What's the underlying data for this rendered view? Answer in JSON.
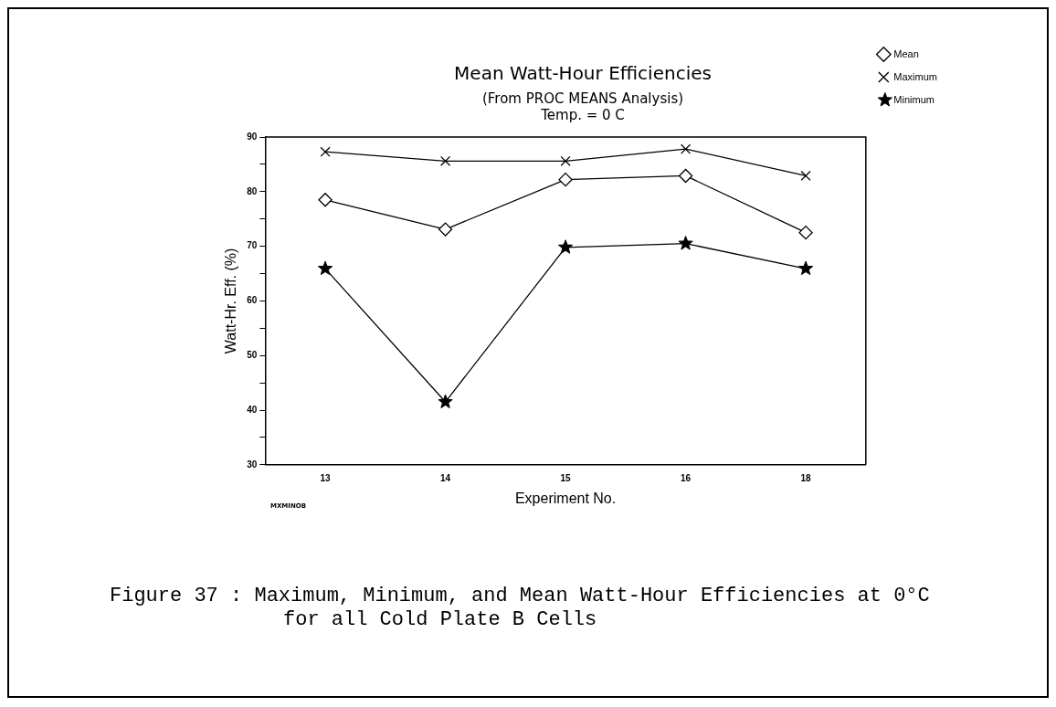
{
  "chart_data": {
    "type": "line",
    "title": "Mean Watt-Hour Efficiencies",
    "subtitle": "(From PROC MEANS Analysis)\nTemp. = 0 C",
    "xlabel": "Experiment No.",
    "ylabel": "Watt-Hr. Eff. (%)",
    "categories": [
      "13",
      "14",
      "15",
      "16",
      "18"
    ],
    "series": [
      {
        "name": "Mean",
        "color": "#000000",
        "marker": "diamond",
        "values": [
          78.5,
          73.1,
          82.2,
          82.9,
          72.5
        ]
      },
      {
        "name": "Maximum",
        "color": "#000000",
        "marker": "cross",
        "values": [
          87.3,
          85.6,
          85.6,
          87.8,
          82.9
        ]
      },
      {
        "name": "Minimum",
        "color": "#000000",
        "marker": "star",
        "values": [
          65.9,
          41.5,
          69.8,
          70.5,
          65.9
        ]
      }
    ],
    "ylim": [
      30,
      90
    ],
    "yticks": [
      30,
      {
        "value": 35,
        "label": null
      },
      40,
      {
        "value": 45,
        "label": null
      },
      50,
      {
        "value": 55,
        "label": null
      },
      60,
      {
        "value": 65,
        "label": null
      },
      70,
      {
        "value": 75,
        "label": null
      },
      80,
      {
        "value": 85,
        "label": null
      },
      90
    ],
    "grid": false,
    "legend": "right",
    "line_style": "solid",
    "annotations": [
      "MXMINOB",
      "Figure 37 :  Maximum, Minimum, and Mean Watt-Hour Efficiencies at 0°C for all Cold Plate B Cells"
    ]
  }
}
